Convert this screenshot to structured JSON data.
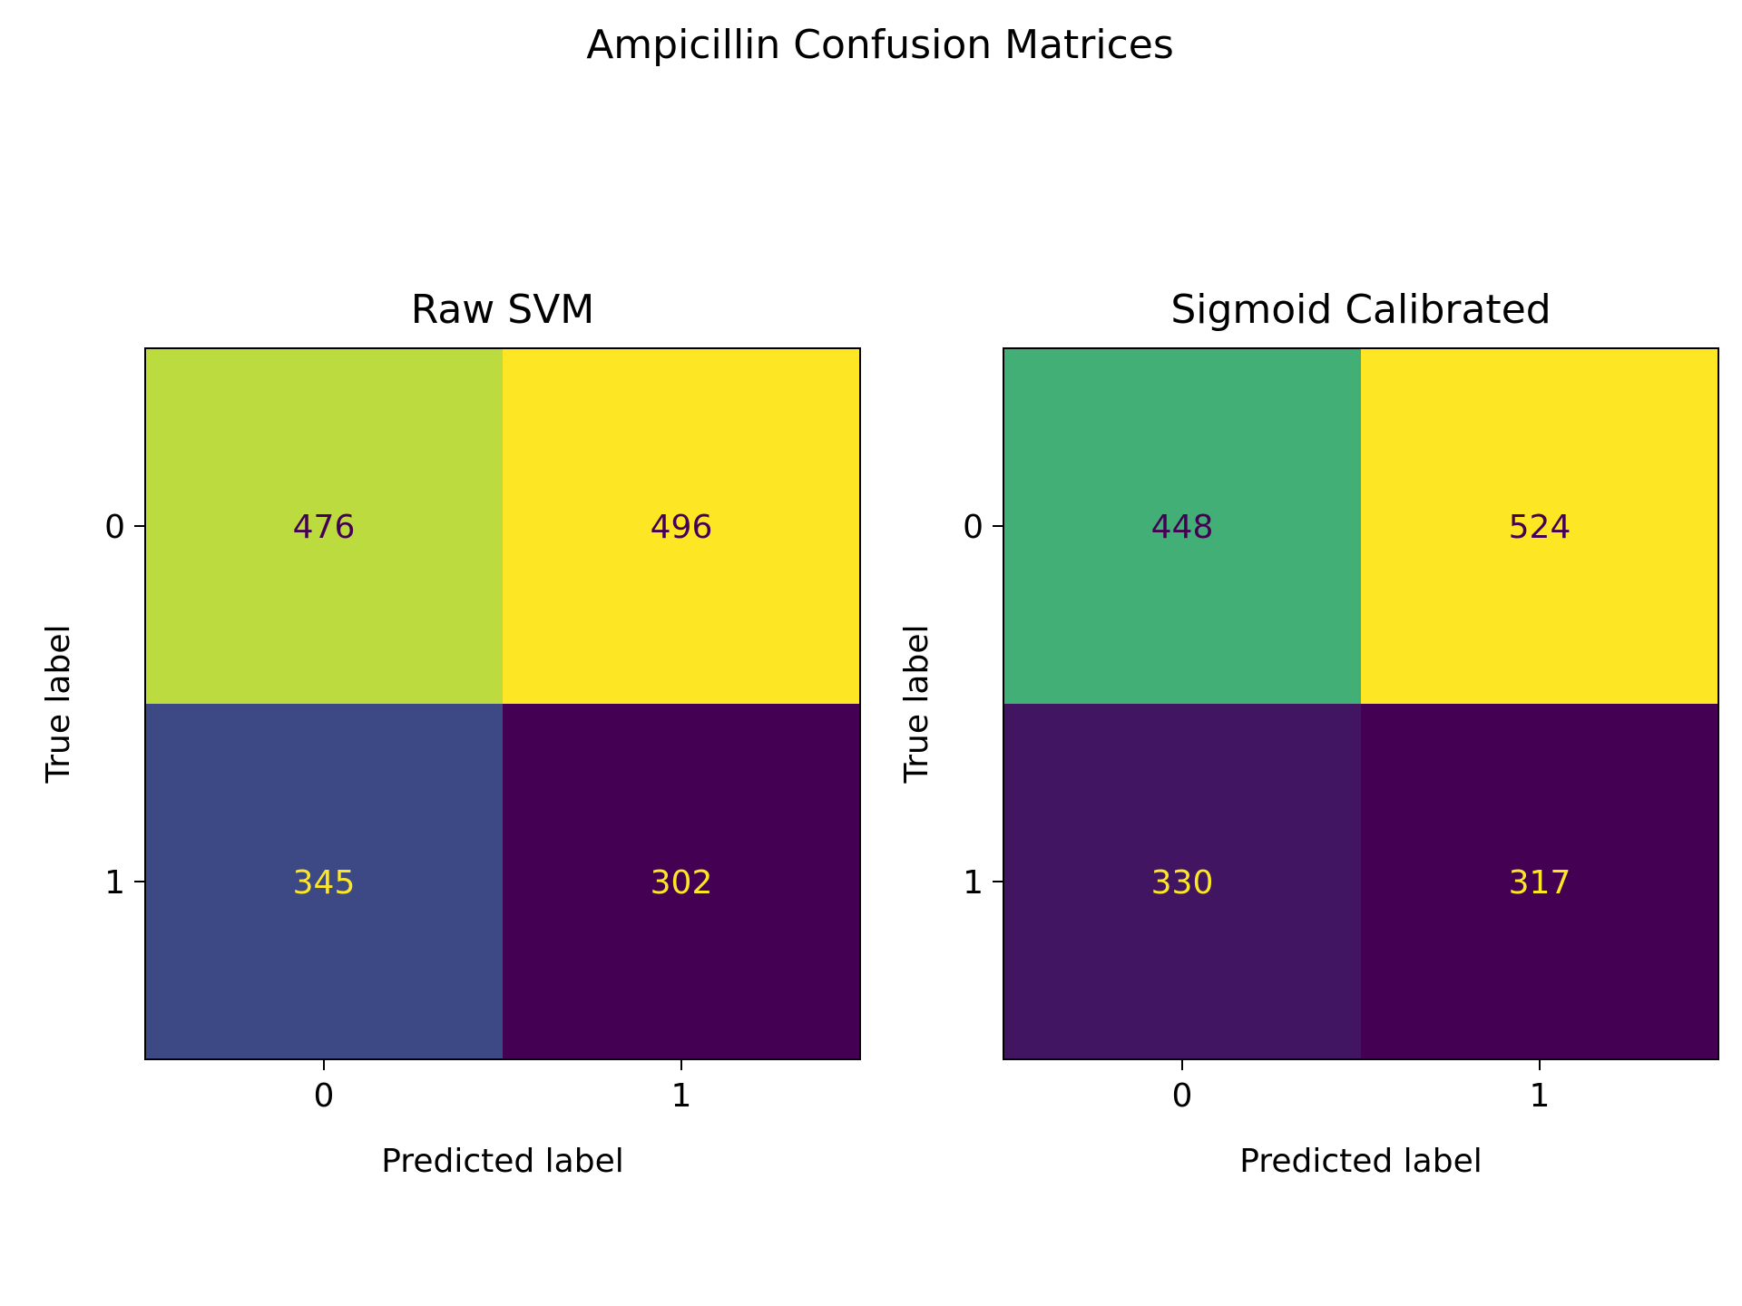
{
  "title": "Ampicillin Confusion Matrices",
  "chart_data": [
    {
      "type": "heatmap",
      "title": "Raw SVM",
      "xlabel": "Predicted label",
      "ylabel": "True label",
      "x_ticks": [
        "0",
        "1"
      ],
      "y_ticks": [
        "0",
        "1"
      ],
      "matrix": [
        [
          476,
          496
        ],
        [
          345,
          302
        ]
      ],
      "colormap": "viridis"
    },
    {
      "type": "heatmap",
      "title": "Sigmoid Calibrated",
      "xlabel": "Predicted label",
      "ylabel": "True label",
      "x_ticks": [
        "0",
        "1"
      ],
      "y_ticks": [
        "0",
        "1"
      ],
      "matrix": [
        [
          448,
          524
        ],
        [
          330,
          317
        ]
      ],
      "colormap": "viridis"
    }
  ]
}
